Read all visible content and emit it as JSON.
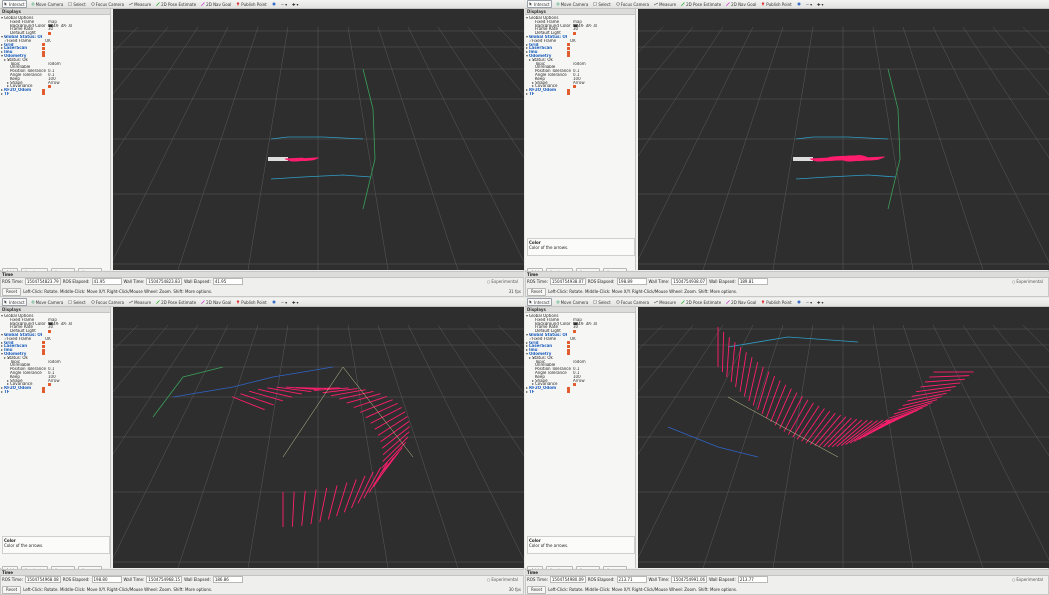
{
  "toolbar": {
    "interact": "Interact",
    "move_camera": "Move Camera",
    "select": "Select",
    "focus_camera": "Focus Camera",
    "measure": "Measure",
    "pose_estimate": "2D Pose Estimate",
    "nav_goal": "2D Nav Goal",
    "publish_point": "Publish Point"
  },
  "displays": {
    "title": "Displays",
    "rows": [
      {
        "k": "Global Options",
        "v": "",
        "lvl": 0,
        "arrow": "▾",
        "hi": false
      },
      {
        "k": "Fixed Frame",
        "v": "map",
        "lvl": 2,
        "arrow": "",
        "hi": false
      },
      {
        "k": "Background Color",
        "v": "48; 48; 48",
        "lvl": 2,
        "arrow": "",
        "hi": false,
        "swatch": "#303030"
      },
      {
        "k": "Frame Rate",
        "v": "30",
        "lvl": 2,
        "arrow": "",
        "hi": false
      },
      {
        "k": "Default Light",
        "v": "",
        "lvl": 2,
        "arrow": "",
        "hi": false,
        "cb": true
      },
      {
        "k": "Global Status: Ok",
        "v": "",
        "lvl": 0,
        "arrow": "▾ ✓",
        "hi": true
      },
      {
        "k": "Fixed Frame",
        "v": "OK",
        "lvl": 1,
        "arrow": "✓",
        "hi": false
      },
      {
        "k": "Grid",
        "v": "",
        "lvl": 0,
        "arrow": "▸",
        "hi": true,
        "cb": true
      },
      {
        "k": "LaserScan",
        "v": "",
        "lvl": 0,
        "arrow": "▸",
        "hi": true,
        "cb": true
      },
      {
        "k": "Imu",
        "v": "",
        "lvl": 0,
        "arrow": "▸",
        "hi": true,
        "cb": true
      },
      {
        "k": "Odometry",
        "v": "",
        "lvl": 0,
        "arrow": "▾",
        "hi": true,
        "cb": true
      },
      {
        "k": "Status: Ok",
        "v": "",
        "lvl": 1,
        "arrow": "▸ ✓",
        "hi": false
      },
      {
        "k": "Topic",
        "v": "/odom",
        "lvl": 2,
        "arrow": "",
        "hi": false
      },
      {
        "k": "Unreliable",
        "v": "",
        "lvl": 2,
        "arrow": "",
        "hi": false
      },
      {
        "k": "Position Tolerance",
        "v": "0.1",
        "lvl": 2,
        "arrow": "",
        "hi": false
      },
      {
        "k": "Angle Tolerance",
        "v": "0.1",
        "lvl": 2,
        "arrow": "",
        "hi": false
      },
      {
        "k": "Keep",
        "v": "100",
        "lvl": 2,
        "arrow": "",
        "hi": false
      },
      {
        "k": "Shape",
        "v": "Arrow",
        "lvl": 2,
        "arrow": "▸",
        "hi": false
      },
      {
        "k": "Covariance",
        "v": "",
        "lvl": 2,
        "arrow": "▸",
        "hi": false,
        "cb": true
      },
      {
        "k": "RF2O_Odom",
        "v": "",
        "lvl": 0,
        "arrow": "▸",
        "hi": true,
        "cb": true
      },
      {
        "k": "TF",
        "v": "",
        "lvl": 0,
        "arrow": "▸",
        "hi": true,
        "cb": true
      }
    ]
  },
  "hint": {
    "title": "Color",
    "text": "Color of the arrows."
  },
  "buttons": {
    "add": "Add",
    "duplicate": "Duplicate",
    "remove": "Remove",
    "rename": "Rename"
  },
  "time": {
    "title": "Time",
    "ros_time_label": "ROS Time:",
    "ros_elapsed_label": "ROS Elapsed:",
    "wall_time_label": "Wall Time:",
    "wall_elapsed_label": "Wall Elapsed:",
    "experimental": "Experimental",
    "reset": "Reset",
    "status": "Left-Click: Rotate. Middle-Click: Move X/Y. Right-Click/Mouse Wheel: Zoom. Shift: More options."
  },
  "panes": [
    {
      "ros_time": "1504754823.79",
      "ros_elapsed": "41.95",
      "wall_time": "1504754823.83",
      "wall_elapsed": "41.95",
      "fps": "31 fps",
      "show_hint": false
    },
    {
      "ros_time": "1504754938.07",
      "ros_elapsed": "198.89",
      "wall_time": "1504754938.07",
      "wall_elapsed": "189.81",
      "fps": "",
      "show_hint": true
    },
    {
      "ros_time": "1504754968.08",
      "ros_elapsed": "198.80",
      "wall_time": "1504754968.15",
      "wall_elapsed": "186.86",
      "fps": "30 fps",
      "show_hint": true
    },
    {
      "ros_time": "1504754980.09",
      "ros_elapsed": "213.71",
      "wall_time": "1504754991.06",
      "wall_elapsed": "213.77",
      "fps": "",
      "show_hint": true
    }
  ],
  "colors": {
    "viewport_bg": "#303030",
    "arrow": "#ff1e6e",
    "grid": "#5a5a5a"
  }
}
